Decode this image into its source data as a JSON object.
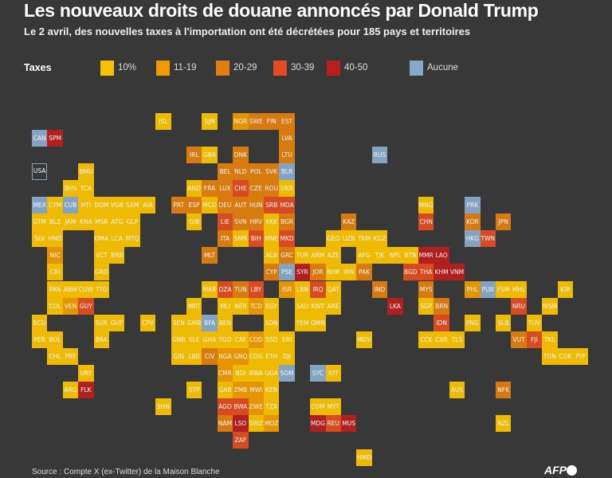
{
  "title": "Les nouveaux droits de douane annoncés par Donald Trump",
  "subtitle": "Le 2 avril, des nouvelles taxes à l'importation ont été décrétées pour 185 pays et territoires",
  "legend": {
    "label": "Taxes",
    "items": [
      {
        "key": "t10",
        "label": "10%",
        "color": "#f8c100"
      },
      {
        "key": "t11",
        "label": "11-19",
        "color": "#f09a00"
      },
      {
        "key": "t20",
        "label": "20-29",
        "color": "#e07e0e"
      },
      {
        "key": "t30",
        "label": "30-39",
        "color": "#e14d20"
      },
      {
        "key": "t40",
        "label": "40-50",
        "color": "#b91e1e"
      },
      {
        "key": "none",
        "label": "Aucune",
        "color": "#86a9c9"
      }
    ]
  },
  "source": "Source : Compte X (ex-Twitter) de la Maison Blanche",
  "logo": "AFP",
  "chart_data": {
    "type": "heatmap",
    "title": "Les nouveaux droits de douane annoncés par Donald Trump",
    "subtitle": "Le 2 avril, des nouvelles taxes à l'importation ont été décrétées pour 185 pays et territoires",
    "legend_placement": "top",
    "categories": [
      "10%",
      "11-19",
      "20-29",
      "30-39",
      "40-50",
      "Aucune"
    ],
    "tiles": [
      [
        "ISL",
        8,
        0,
        "t10"
      ],
      [
        "SJM",
        11,
        0,
        "t10"
      ],
      [
        "NOR",
        13,
        0,
        "t11"
      ],
      [
        "SWE",
        14,
        0,
        "t20"
      ],
      [
        "FIN",
        15,
        0,
        "t20"
      ],
      [
        "EST",
        16,
        0,
        "t20"
      ],
      [
        "CAN",
        0,
        1,
        "none"
      ],
      [
        "SPM",
        1,
        1,
        "t40"
      ],
      [
        "LVA",
        16,
        1,
        "t20"
      ],
      [
        "IRL",
        10,
        2,
        "t20"
      ],
      [
        "GBR",
        11,
        2,
        "t10"
      ],
      [
        "DNK",
        13,
        2,
        "t20"
      ],
      [
        "LTU",
        16,
        2,
        "t20"
      ],
      [
        "RUS",
        22,
        2,
        "none"
      ],
      [
        "USA",
        0,
        3,
        "usa"
      ],
      [
        "BMU",
        3,
        3,
        "t10"
      ],
      [
        "BEL",
        12,
        3,
        "t20"
      ],
      [
        "NLD",
        13,
        3,
        "t20"
      ],
      [
        "POL",
        14,
        3,
        "t20"
      ],
      [
        "SVK",
        15,
        3,
        "t20"
      ],
      [
        "BLR",
        16,
        3,
        "none"
      ],
      [
        "BHS",
        2,
        4,
        "t10"
      ],
      [
        "TCA",
        3,
        4,
        "t10"
      ],
      [
        "AND",
        10,
        4,
        "t10"
      ],
      [
        "FRA",
        11,
        4,
        "t20"
      ],
      [
        "LUX",
        12,
        4,
        "t20"
      ],
      [
        "CHE",
        13,
        4,
        "t30"
      ],
      [
        "CZE",
        14,
        4,
        "t20"
      ],
      [
        "ROU",
        15,
        4,
        "t20"
      ],
      [
        "UKR",
        16,
        4,
        "t10"
      ],
      [
        "MEX",
        0,
        5,
        "none"
      ],
      [
        "CYM",
        1,
        5,
        "t10"
      ],
      [
        "CUB",
        2,
        5,
        "none"
      ],
      [
        "HTI",
        3,
        5,
        "t10"
      ],
      [
        "DOM",
        4,
        5,
        "t10"
      ],
      [
        "VGB",
        5,
        5,
        "t10"
      ],
      [
        "SXM",
        6,
        5,
        "t10"
      ],
      [
        "AIA",
        7,
        5,
        "t10"
      ],
      [
        "PRT",
        9,
        5,
        "t20"
      ],
      [
        "ESP",
        10,
        5,
        "t20"
      ],
      [
        "MCO",
        11,
        5,
        "t10"
      ],
      [
        "DEU",
        12,
        5,
        "t20"
      ],
      [
        "AUT",
        13,
        5,
        "t20"
      ],
      [
        "HUN",
        14,
        5,
        "t20"
      ],
      [
        "SRB",
        15,
        5,
        "t30"
      ],
      [
        "MDA",
        16,
        5,
        "t30"
      ],
      [
        "MNG",
        25,
        5,
        "t10"
      ],
      [
        "PRK",
        28,
        5,
        "none"
      ],
      [
        "GTM",
        0,
        6,
        "t10"
      ],
      [
        "BLZ",
        1,
        6,
        "t10"
      ],
      [
        "JAM",
        2,
        6,
        "t10"
      ],
      [
        "KNA",
        3,
        6,
        "t10"
      ],
      [
        "MSR",
        4,
        6,
        "t10"
      ],
      [
        "ATG",
        5,
        6,
        "t10"
      ],
      [
        "GLP",
        6,
        6,
        "t10"
      ],
      [
        "GIB",
        10,
        6,
        "t10"
      ],
      [
        "LIE",
        12,
        6,
        "t30"
      ],
      [
        "SVN",
        13,
        6,
        "t20"
      ],
      [
        "HRV",
        14,
        6,
        "t20"
      ],
      [
        "XKK",
        15,
        6,
        "t10"
      ],
      [
        "BGR",
        16,
        6,
        "t20"
      ],
      [
        "KAZ",
        20,
        6,
        "t20"
      ],
      [
        "CHN",
        25,
        6,
        "t30"
      ],
      [
        "KOR",
        28,
        6,
        "t20"
      ],
      [
        "JPN",
        30,
        6,
        "t20"
      ],
      [
        "SLV",
        0,
        7,
        "t10"
      ],
      [
        "HND",
        1,
        7,
        "t10"
      ],
      [
        "DMA",
        4,
        7,
        "t10"
      ],
      [
        "LCA",
        5,
        7,
        "t10"
      ],
      [
        "MTQ",
        6,
        7,
        "t10"
      ],
      [
        "ITA",
        12,
        7,
        "t20"
      ],
      [
        "SMR",
        13,
        7,
        "t10"
      ],
      [
        "BIH",
        14,
        7,
        "t30"
      ],
      [
        "MNE",
        15,
        7,
        "t10"
      ],
      [
        "MKD",
        16,
        7,
        "t30"
      ],
      [
        "GEO",
        19,
        7,
        "t10"
      ],
      [
        "UZB",
        20,
        7,
        "t10"
      ],
      [
        "TKM",
        21,
        7,
        "t10"
      ],
      [
        "KGZ",
        22,
        7,
        "t10"
      ],
      [
        "HKG",
        28,
        7,
        "none"
      ],
      [
        "TWN",
        29,
        7,
        "t30"
      ],
      [
        "NIC",
        1,
        8,
        "t11"
      ],
      [
        "VCT",
        4,
        8,
        "t10"
      ],
      [
        "BRB",
        5,
        8,
        "t10"
      ],
      [
        "MLT",
        11,
        8,
        "t20"
      ],
      [
        "ALB",
        15,
        8,
        "t10"
      ],
      [
        "GRC",
        16,
        8,
        "t20"
      ],
      [
        "TUR",
        17,
        8,
        "t10"
      ],
      [
        "ARM",
        18,
        8,
        "t10"
      ],
      [
        "AZE",
        19,
        8,
        "t10"
      ],
      [
        "AFG",
        21,
        8,
        "t10"
      ],
      [
        "TJK",
        22,
        8,
        "t10"
      ],
      [
        "NPL",
        23,
        8,
        "t10"
      ],
      [
        "BTN",
        24,
        8,
        "t10"
      ],
      [
        "MMR",
        25,
        8,
        "t40"
      ],
      [
        "LAO",
        26,
        8,
        "t40"
      ],
      [
        "CRI",
        1,
        9,
        "t10"
      ],
      [
        "GRD",
        4,
        9,
        "t10"
      ],
      [
        "CYP",
        15,
        9,
        "t20"
      ],
      [
        "PSE",
        16,
        9,
        "none"
      ],
      [
        "SYR",
        17,
        9,
        "t40"
      ],
      [
        "JOR",
        18,
        9,
        "t20"
      ],
      [
        "BHR",
        19,
        9,
        "t10"
      ],
      [
        "IRN",
        20,
        9,
        "t10"
      ],
      [
        "PAK",
        21,
        9,
        "t20"
      ],
      [
        "BGD",
        24,
        9,
        "t30"
      ],
      [
        "THA",
        25,
        9,
        "t30"
      ],
      [
        "KHM",
        26,
        9,
        "t40"
      ],
      [
        "VNM",
        27,
        9,
        "t40"
      ],
      [
        "PAN",
        1,
        10,
        "t10"
      ],
      [
        "ABW",
        2,
        10,
        "t10"
      ],
      [
        "CUW",
        3,
        10,
        "t10"
      ],
      [
        "TTO",
        4,
        10,
        "t10"
      ],
      [
        "MAR",
        11,
        10,
        "t10"
      ],
      [
        "DZA",
        12,
        10,
        "t30"
      ],
      [
        "TUN",
        13,
        10,
        "t20"
      ],
      [
        "LBY",
        14,
        10,
        "t30"
      ],
      [
        "ISR",
        16,
        10,
        "t11"
      ],
      [
        "LBN",
        17,
        10,
        "t10"
      ],
      [
        "IRQ",
        18,
        10,
        "t30"
      ],
      [
        "QAT",
        19,
        10,
        "t10"
      ],
      [
        "IND",
        22,
        10,
        "t20"
      ],
      [
        "MYS",
        25,
        10,
        "t20"
      ],
      [
        "PHL",
        28,
        10,
        "t11"
      ],
      [
        "PLW",
        29,
        10,
        "none"
      ],
      [
        "FSM",
        30,
        10,
        "t10"
      ],
      [
        "MHL",
        31,
        10,
        "t10"
      ],
      [
        "KIR",
        34,
        10,
        "t10"
      ],
      [
        "COL",
        1,
        11,
        "t10"
      ],
      [
        "VEN",
        2,
        11,
        "t11"
      ],
      [
        "GUY",
        3,
        11,
        "t30"
      ],
      [
        "MRT",
        10,
        11,
        "t10"
      ],
      [
        "MLI",
        12,
        11,
        "t10"
      ],
      [
        "NER",
        13,
        11,
        "t10"
      ],
      [
        "TCD",
        14,
        11,
        "t11"
      ],
      [
        "EGY",
        15,
        11,
        "t10"
      ],
      [
        "SAU",
        17,
        11,
        "t10"
      ],
      [
        "KWT",
        18,
        11,
        "t10"
      ],
      [
        "ARE",
        19,
        11,
        "t10"
      ],
      [
        "LKA",
        23,
        11,
        "t40"
      ],
      [
        "SGP",
        25,
        11,
        "t10"
      ],
      [
        "BRN",
        26,
        11,
        "t20"
      ],
      [
        "NRU",
        31,
        11,
        "t30"
      ],
      [
        "WSM",
        33,
        11,
        "t10"
      ],
      [
        "ECU",
        0,
        12,
        "t10"
      ],
      [
        "SUR",
        4,
        12,
        "t10"
      ],
      [
        "GUF",
        5,
        12,
        "t10"
      ],
      [
        "CPV",
        7,
        12,
        "t10"
      ],
      [
        "SEN",
        9,
        12,
        "t10"
      ],
      [
        "GMB",
        10,
        12,
        "t10"
      ],
      [
        "BFA",
        11,
        12,
        "none"
      ],
      [
        "BEN",
        12,
        12,
        "t10"
      ],
      [
        "SDN",
        15,
        12,
        "t10"
      ],
      [
        "YEM",
        17,
        12,
        "t10"
      ],
      [
        "OMN",
        18,
        12,
        "t10"
      ],
      [
        "IDN",
        26,
        12,
        "t30"
      ],
      [
        "PNG",
        28,
        12,
        "t10"
      ],
      [
        "SLB",
        30,
        12,
        "t10"
      ],
      [
        "TUV",
        32,
        12,
        "t10"
      ],
      [
        "PER",
        0,
        13,
        "t10"
      ],
      [
        "BOL",
        1,
        13,
        "t10"
      ],
      [
        "BRA",
        4,
        13,
        "t10"
      ],
      [
        "GNB",
        9,
        13,
        "t10"
      ],
      [
        "SLE",
        10,
        13,
        "t10"
      ],
      [
        "GHA",
        11,
        13,
        "t10"
      ],
      [
        "TGO",
        12,
        13,
        "t10"
      ],
      [
        "CAF",
        13,
        13,
        "t10"
      ],
      [
        "COD",
        14,
        13,
        "t11"
      ],
      [
        "SSD",
        15,
        13,
        "t10"
      ],
      [
        "ERI",
        16,
        13,
        "t10"
      ],
      [
        "MDV",
        21,
        13,
        "t10"
      ],
      [
        "CCK",
        25,
        13,
        "t10"
      ],
      [
        "CXR",
        26,
        13,
        "t10"
      ],
      [
        "TLS",
        27,
        13,
        "t10"
      ],
      [
        "VUT",
        31,
        13,
        "t20"
      ],
      [
        "FJI",
        32,
        13,
        "t30"
      ],
      [
        "TKL",
        33,
        13,
        "t10"
      ],
      [
        "CHL",
        1,
        14,
        "t10"
      ],
      [
        "PRY",
        2,
        14,
        "t10"
      ],
      [
        "GIN",
        9,
        14,
        "t10"
      ],
      [
        "LBR",
        10,
        14,
        "t10"
      ],
      [
        "CIV",
        11,
        14,
        "t20"
      ],
      [
        "NGA",
        12,
        14,
        "t11"
      ],
      [
        "GNQ",
        13,
        14,
        "t11"
      ],
      [
        "COG",
        14,
        14,
        "t10"
      ],
      [
        "ETH",
        15,
        14,
        "t10"
      ],
      [
        "DJI",
        16,
        14,
        "t10"
      ],
      [
        "TON",
        33,
        14,
        "t10"
      ],
      [
        "COK",
        34,
        14,
        "t10"
      ],
      [
        "PYF",
        35,
        14,
        "t10"
      ],
      [
        "URY",
        3,
        15,
        "t10"
      ],
      [
        "CMR",
        12,
        15,
        "t11"
      ],
      [
        "BDI",
        13,
        15,
        "t10"
      ],
      [
        "RWA",
        14,
        15,
        "t10"
      ],
      [
        "UGA",
        15,
        15,
        "t10"
      ],
      [
        "SOM",
        16,
        15,
        "none"
      ],
      [
        "SYC",
        18,
        15,
        "none"
      ],
      [
        "IOT",
        19,
        15,
        "t10"
      ],
      [
        "ARG",
        2,
        16,
        "t10"
      ],
      [
        "FLK",
        3,
        16,
        "t40"
      ],
      [
        "STP",
        10,
        16,
        "t10"
      ],
      [
        "GAB",
        12,
        16,
        "t10"
      ],
      [
        "ZMB",
        13,
        16,
        "t11"
      ],
      [
        "MWI",
        14,
        16,
        "t11"
      ],
      [
        "KEN",
        15,
        16,
        "t10"
      ],
      [
        "AUS",
        27,
        16,
        "t10"
      ],
      [
        "NFK",
        30,
        16,
        "t20"
      ],
      [
        "SHN",
        8,
        17,
        "t10"
      ],
      [
        "AGO",
        12,
        17,
        "t30"
      ],
      [
        "BWA",
        13,
        17,
        "t30"
      ],
      [
        "ZWE",
        14,
        17,
        "t11"
      ],
      [
        "TZA",
        15,
        17,
        "t10"
      ],
      [
        "COM",
        18,
        17,
        "t10"
      ],
      [
        "MYT",
        19,
        17,
        "t10"
      ],
      [
        "NAM",
        12,
        18,
        "t20"
      ],
      [
        "LSO",
        13,
        18,
        "t40"
      ],
      [
        "SWZ",
        14,
        18,
        "t10"
      ],
      [
        "MOZ",
        15,
        18,
        "t11"
      ],
      [
        "MDG",
        18,
        18,
        "t40"
      ],
      [
        "REU",
        19,
        18,
        "t30"
      ],
      [
        "MUS",
        20,
        18,
        "t40"
      ],
      [
        "NZL",
        30,
        18,
        "t10"
      ],
      [
        "ZAF",
        13,
        19,
        "t30"
      ],
      [
        "HMD",
        21,
        20,
        "t10"
      ]
    ]
  }
}
